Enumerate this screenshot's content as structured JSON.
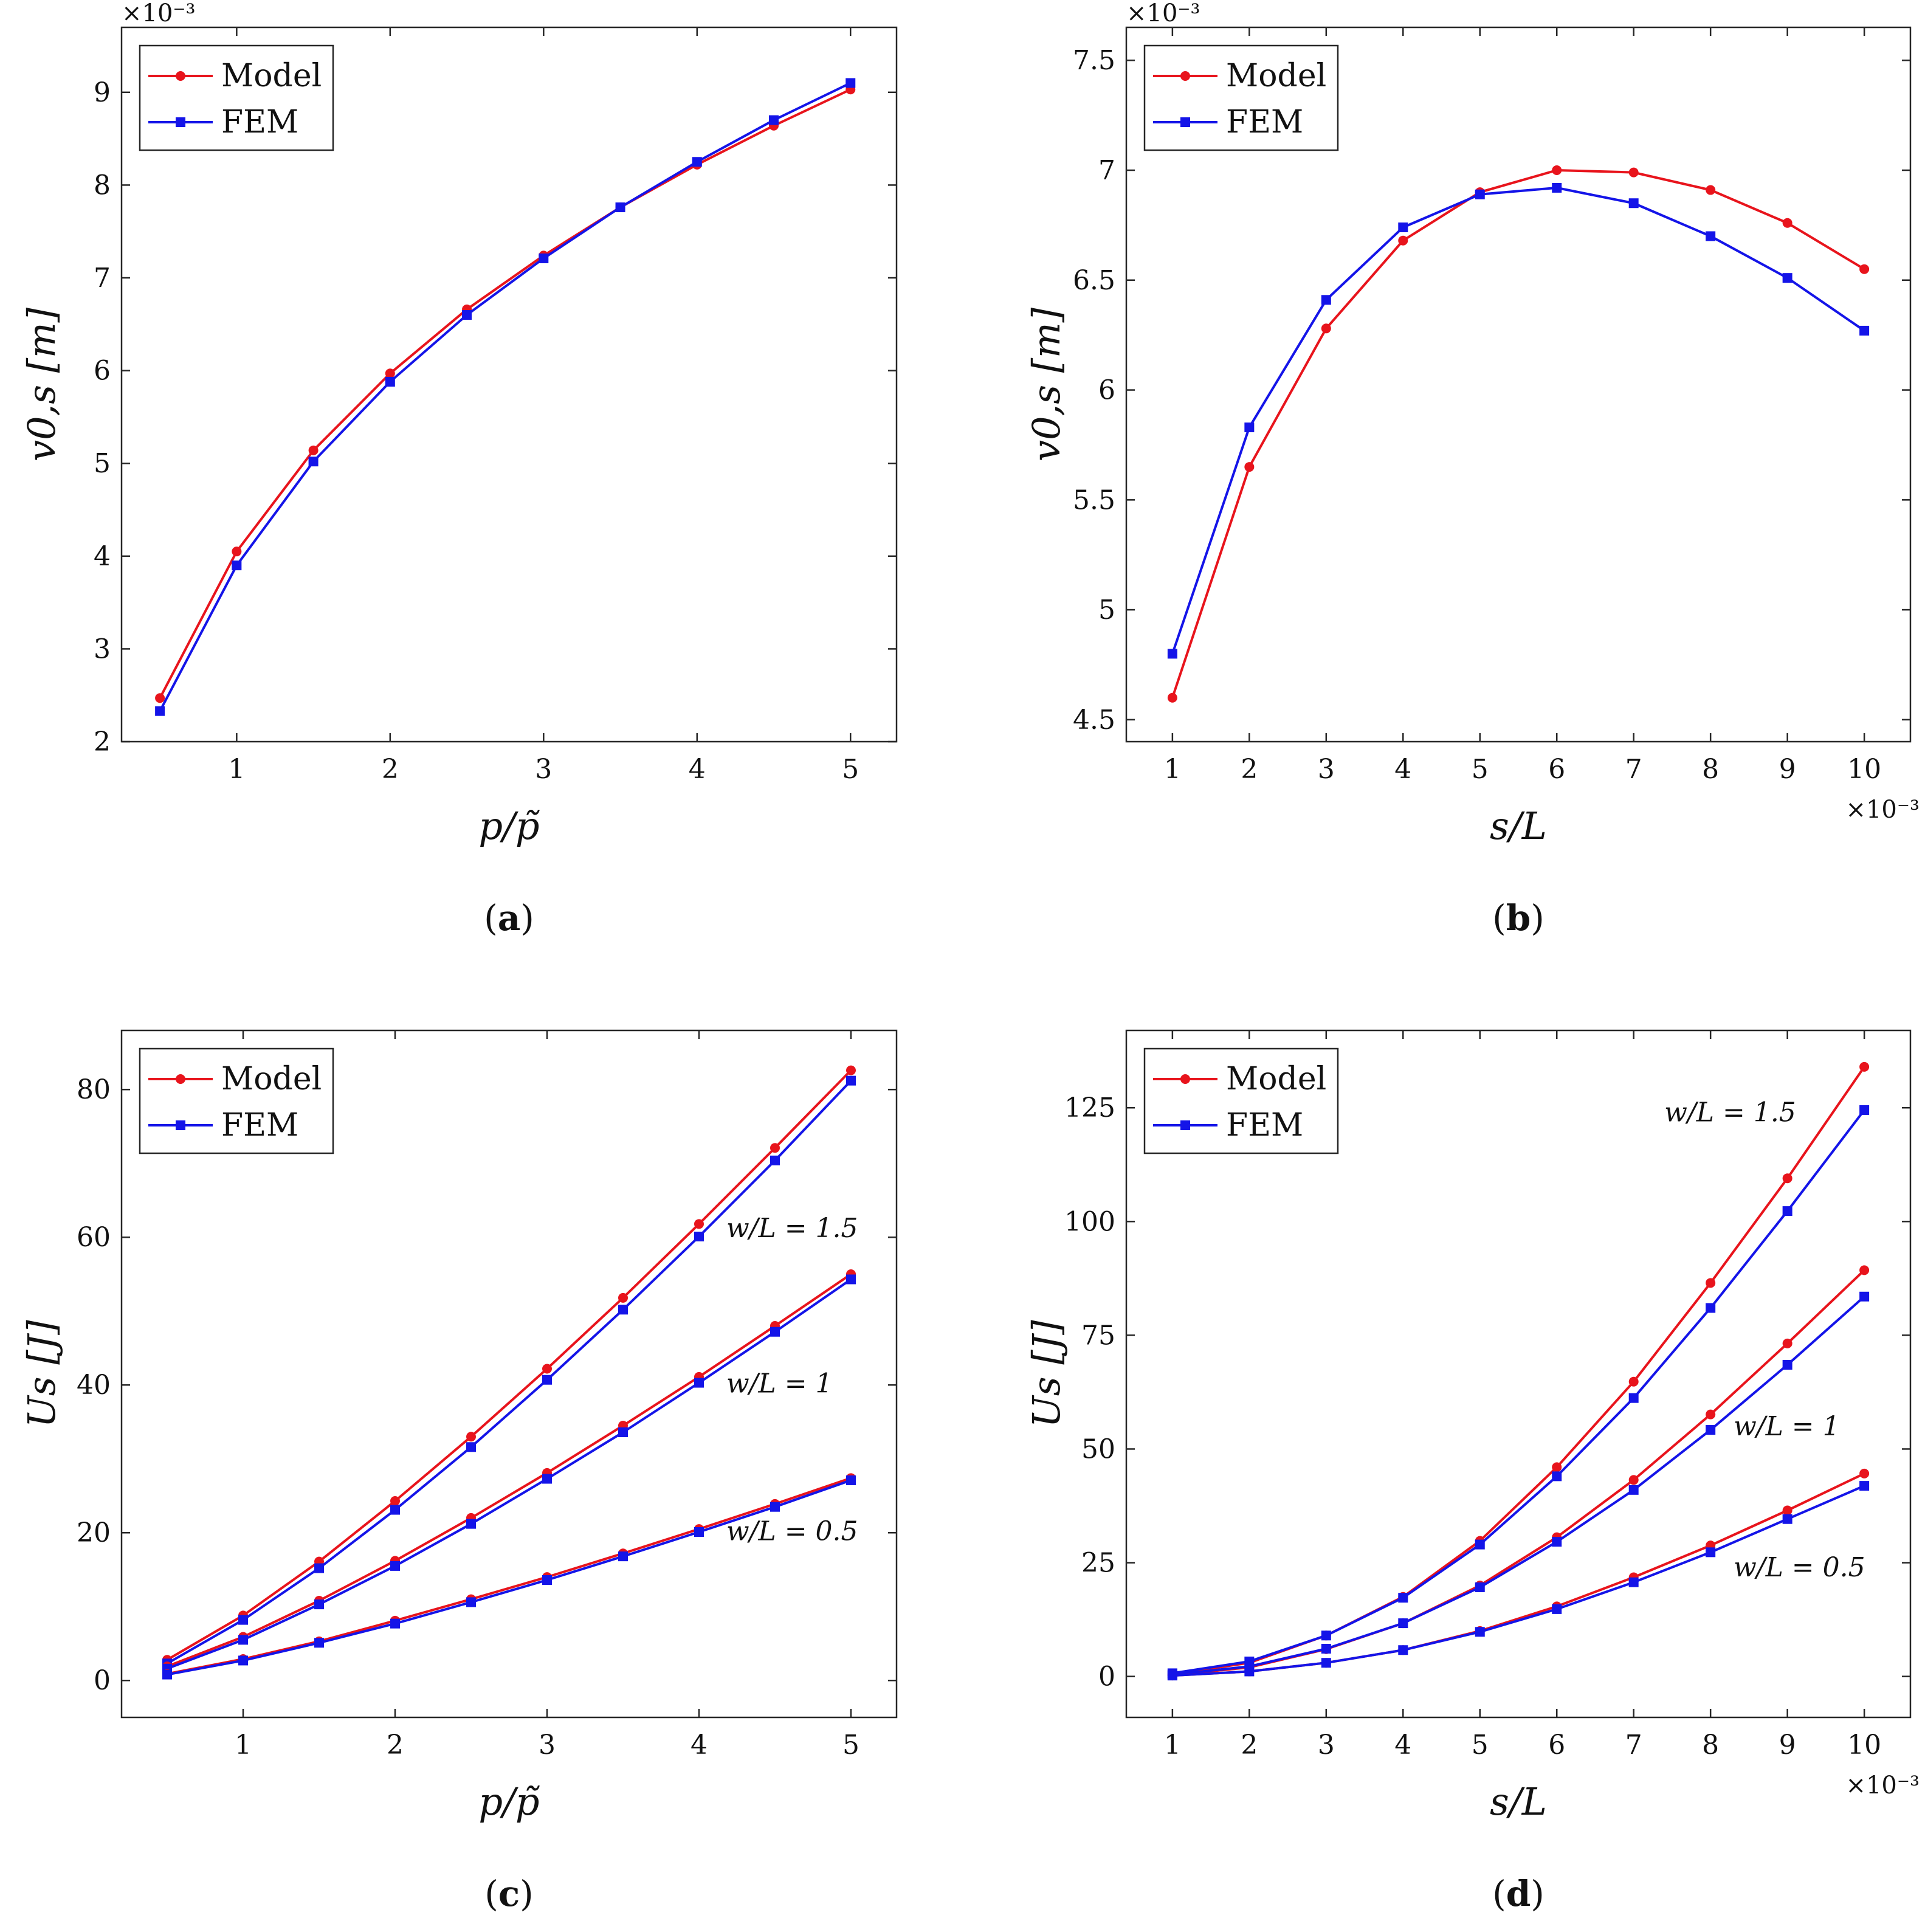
{
  "colors": {
    "model": "#e8141c",
    "fem": "#1414e8"
  },
  "chart_data": [
    {
      "id": "a",
      "type": "line",
      "panel_label": "a",
      "xlabel": "p/p̃",
      "ylabel": "v0,s [m]",
      "y_multiplier": "×10⁻³",
      "x_multiplier": "",
      "xlim": [
        0.25,
        5.3
      ],
      "ylim": [
        2,
        9.7
      ],
      "xticks": [
        1,
        2,
        3,
        4,
        5
      ],
      "xtick_labels": [
        "1",
        "2",
        "3",
        "4",
        "5"
      ],
      "yticks": [
        2,
        3,
        4,
        5,
        6,
        7,
        8,
        9
      ],
      "ytick_labels": [
        "2",
        "3",
        "4",
        "5",
        "6",
        "7",
        "8",
        "9"
      ],
      "legend": [
        "Model",
        "FEM"
      ],
      "legend_position": "top-left",
      "annotations": [],
      "series": [
        {
          "name": "Model",
          "color_key": "model",
          "marker": "circle",
          "x": [
            0.5,
            1,
            1.5,
            2,
            2.5,
            3,
            3.5,
            4,
            4.5,
            5
          ],
          "y": [
            2.47,
            4.05,
            5.14,
            5.97,
            6.66,
            7.24,
            7.76,
            8.22,
            8.64,
            9.03
          ]
        },
        {
          "name": "FEM",
          "color_key": "fem",
          "marker": "square",
          "x": [
            0.5,
            1,
            1.5,
            2,
            2.5,
            3,
            3.5,
            4,
            4.5,
            5
          ],
          "y": [
            2.33,
            3.9,
            5.02,
            5.88,
            6.6,
            7.21,
            7.76,
            8.25,
            8.7,
            9.1
          ]
        }
      ]
    },
    {
      "id": "b",
      "type": "line",
      "panel_label": "b",
      "xlabel": "s/L",
      "ylabel": "v0,s [m]",
      "y_multiplier": "×10⁻³",
      "x_multiplier": "×10⁻³",
      "xlim": [
        0.4,
        10.6
      ],
      "ylim": [
        4.4,
        7.65
      ],
      "xticks": [
        1,
        2,
        3,
        4,
        5,
        6,
        7,
        8,
        9,
        10
      ],
      "xtick_labels": [
        "1",
        "2",
        "3",
        "4",
        "5",
        "6",
        "7",
        "8",
        "9",
        "10"
      ],
      "yticks": [
        4.5,
        5,
        5.5,
        6,
        6.5,
        7,
        7.5
      ],
      "ytick_labels": [
        "4.5",
        "5",
        "5.5",
        "6",
        "6.5",
        "7",
        "7.5"
      ],
      "legend": [
        "Model",
        "FEM"
      ],
      "legend_position": "top-left",
      "annotations": [],
      "series": [
        {
          "name": "Model",
          "color_key": "model",
          "marker": "circle",
          "x": [
            1,
            2,
            3,
            4,
            5,
            6,
            7,
            8,
            9,
            10
          ],
          "y": [
            4.6,
            5.65,
            6.28,
            6.68,
            6.9,
            7.0,
            6.99,
            6.91,
            6.76,
            6.55
          ]
        },
        {
          "name": "FEM",
          "color_key": "fem",
          "marker": "square",
          "x": [
            1,
            2,
            3,
            4,
            5,
            6,
            7,
            8,
            9,
            10
          ],
          "y": [
            4.8,
            5.83,
            6.41,
            6.74,
            6.89,
            6.92,
            6.85,
            6.7,
            6.51,
            6.27
          ]
        }
      ]
    },
    {
      "id": "c",
      "type": "line",
      "panel_label": "c",
      "xlabel": "p/p̃",
      "ylabel": "Us [J]",
      "y_multiplier": "",
      "x_multiplier": "",
      "xlim": [
        0.2,
        5.3
      ],
      "ylim": [
        -5,
        88
      ],
      "xticks": [
        1,
        2,
        3,
        4,
        5
      ],
      "xtick_labels": [
        "1",
        "2",
        "3",
        "4",
        "5"
      ],
      "yticks": [
        0,
        20,
        40,
        60,
        80
      ],
      "ytick_labels": [
        "0",
        "20",
        "40",
        "60",
        "80"
      ],
      "legend": [
        "Model",
        "FEM"
      ],
      "legend_position": "top-left",
      "annotations": [
        {
          "text": "w/L = 1.5",
          "x": 4.18,
          "y": 60
        },
        {
          "text": "w/L = 1",
          "x": 4.18,
          "y": 39
        },
        {
          "text": "w/L = 0.5",
          "x": 4.18,
          "y": 19
        }
      ],
      "series": [
        {
          "name": "Model w/L=1.5",
          "color_key": "model",
          "marker": "circle",
          "x": [
            0.5,
            1,
            1.5,
            2,
            2.5,
            3,
            3.5,
            4,
            4.5,
            5
          ],
          "y": [
            2.8,
            8.8,
            16.1,
            24.3,
            33,
            42.2,
            51.8,
            61.8,
            72.1,
            82.6
          ]
        },
        {
          "name": "FEM w/L=1.5",
          "color_key": "fem",
          "marker": "square",
          "x": [
            0.5,
            1,
            1.5,
            2,
            2.5,
            3,
            3.5,
            4,
            4.5,
            5
          ],
          "y": [
            2.3,
            8.2,
            15.2,
            23.1,
            31.6,
            40.7,
            50.2,
            60.1,
            70.4,
            81.2
          ]
        },
        {
          "name": "Model w/L=1",
          "color_key": "model",
          "marker": "circle",
          "x": [
            0.5,
            1,
            1.5,
            2,
            2.5,
            3,
            3.5,
            4,
            4.5,
            5
          ],
          "y": [
            1.9,
            5.9,
            10.8,
            16.2,
            22,
            28.1,
            34.5,
            41.1,
            48,
            55
          ]
        },
        {
          "name": "FEM w/L=1",
          "color_key": "fem",
          "marker": "square",
          "x": [
            0.5,
            1,
            1.5,
            2,
            2.5,
            3,
            3.5,
            4,
            4.5,
            5
          ],
          "y": [
            1.6,
            5.5,
            10.3,
            15.5,
            21.2,
            27.3,
            33.6,
            40.3,
            47.2,
            54.3
          ]
        },
        {
          "name": "Model w/L=0.5",
          "color_key": "model",
          "marker": "circle",
          "x": [
            0.5,
            1,
            1.5,
            2,
            2.5,
            3,
            3.5,
            4,
            4.5,
            5
          ],
          "y": [
            0.9,
            2.9,
            5.3,
            8.1,
            11,
            14,
            17.2,
            20.5,
            23.9,
            27.4
          ]
        },
        {
          "name": "FEM w/L=0.5",
          "color_key": "fem",
          "marker": "square",
          "x": [
            0.5,
            1,
            1.5,
            2,
            2.5,
            3,
            3.5,
            4,
            4.5,
            5
          ],
          "y": [
            0.8,
            2.7,
            5.1,
            7.7,
            10.6,
            13.6,
            16.8,
            20.1,
            23.5,
            27.1
          ]
        }
      ]
    },
    {
      "id": "d",
      "type": "line",
      "panel_label": "d",
      "xlabel": "s/L",
      "ylabel": "Us [J]",
      "y_multiplier": "",
      "x_multiplier": "×10⁻³",
      "xlim": [
        0.4,
        10.6
      ],
      "ylim": [
        -9,
        142
      ],
      "xticks": [
        1,
        2,
        3,
        4,
        5,
        6,
        7,
        8,
        9,
        10
      ],
      "xtick_labels": [
        "1",
        "2",
        "3",
        "4",
        "5",
        "6",
        "7",
        "8",
        "9",
        "10"
      ],
      "yticks": [
        0,
        25,
        50,
        75,
        100,
        125
      ],
      "ytick_labels": [
        "0",
        "25",
        "50",
        "75",
        "100",
        "125"
      ],
      "legend": [
        "Model",
        "FEM"
      ],
      "legend_position": "top-left",
      "annotations": [
        {
          "text": "w/L = 1.5",
          "x": 7.4,
          "y": 122
        },
        {
          "text": "w/L = 1",
          "x": 8.3,
          "y": 53
        },
        {
          "text": "w/L = 0.5",
          "x": 8.3,
          "y": 22
        }
      ],
      "series": [
        {
          "name": "Model w/L=1.5",
          "color_key": "model",
          "marker": "circle",
          "x": [
            1,
            2,
            3,
            4,
            5,
            6,
            7,
            8,
            9,
            10
          ],
          "y": [
            0.5,
            3,
            9,
            17.5,
            29.8,
            46,
            64.8,
            86.5,
            109.5,
            134
          ]
        },
        {
          "name": "FEM w/L=1.5",
          "color_key": "fem",
          "marker": "square",
          "x": [
            1,
            2,
            3,
            4,
            5,
            6,
            7,
            8,
            9,
            10
          ],
          "y": [
            0.7,
            3.3,
            9,
            17.3,
            29,
            44,
            61.2,
            81,
            102.3,
            124.5
          ]
        },
        {
          "name": "Model w/L=1",
          "color_key": "model",
          "marker": "circle",
          "x": [
            1,
            2,
            3,
            4,
            5,
            6,
            7,
            8,
            9,
            10
          ],
          "y": [
            0.3,
            2,
            6,
            11.7,
            20,
            30.6,
            43.2,
            57.6,
            73.2,
            89.3
          ]
        },
        {
          "name": "FEM w/L=1",
          "color_key": "fem",
          "marker": "square",
          "x": [
            1,
            2,
            3,
            4,
            5,
            6,
            7,
            8,
            9,
            10
          ],
          "y": [
            0.4,
            2.2,
            6.1,
            11.7,
            19.6,
            29.6,
            41,
            54.2,
            68.5,
            83.5
          ]
        },
        {
          "name": "Model w/L=0.5",
          "color_key": "model",
          "marker": "circle",
          "x": [
            1,
            2,
            3,
            4,
            5,
            6,
            7,
            8,
            9,
            10
          ],
          "y": [
            0.2,
            1.1,
            3,
            5.8,
            10,
            15.4,
            21.8,
            28.8,
            36.5,
            44.6
          ]
        },
        {
          "name": "FEM w/L=0.5",
          "color_key": "fem",
          "marker": "square",
          "x": [
            1,
            2,
            3,
            4,
            5,
            6,
            7,
            8,
            9,
            10
          ],
          "y": [
            0.2,
            1.1,
            3,
            5.8,
            9.8,
            14.8,
            20.7,
            27.3,
            34.6,
            41.9
          ]
        }
      ]
    }
  ]
}
